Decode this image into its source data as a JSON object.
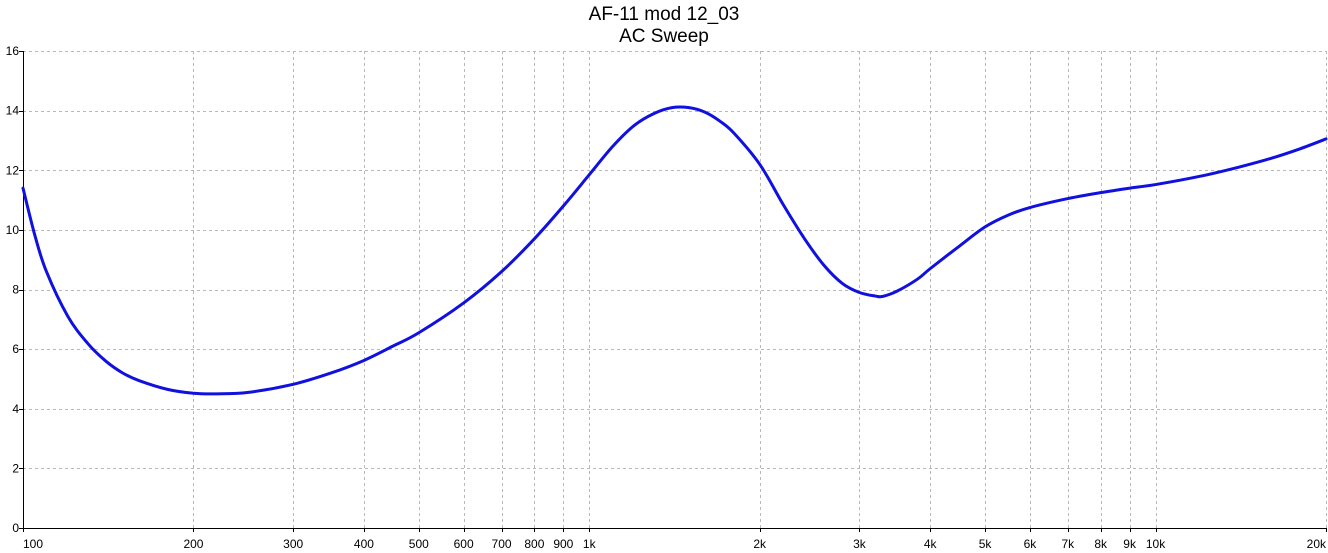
{
  "chart_data": {
    "type": "line",
    "title": "AF-11 mod 12_03",
    "subtitle": "AC Sweep",
    "xlabel": "",
    "ylabel": "",
    "x_scale": "log",
    "xlim": [
      100,
      20000
    ],
    "ylim": [
      0,
      16
    ],
    "grid": true,
    "legend": "none",
    "x_ticks": [
      {
        "value": 100,
        "label": "100"
      },
      {
        "value": 200,
        "label": "200"
      },
      {
        "value": 300,
        "label": "300"
      },
      {
        "value": 400,
        "label": "400"
      },
      {
        "value": 500,
        "label": "500"
      },
      {
        "value": 600,
        "label": "600"
      },
      {
        "value": 700,
        "label": "700"
      },
      {
        "value": 800,
        "label": "800"
      },
      {
        "value": 900,
        "label": "900"
      },
      {
        "value": 1000,
        "label": "1k"
      },
      {
        "value": 2000,
        "label": "2k"
      },
      {
        "value": 3000,
        "label": "3k"
      },
      {
        "value": 4000,
        "label": "4k"
      },
      {
        "value": 5000,
        "label": "5k"
      },
      {
        "value": 6000,
        "label": "6k"
      },
      {
        "value": 7000,
        "label": "7k"
      },
      {
        "value": 8000,
        "label": "8k"
      },
      {
        "value": 9000,
        "label": "9k"
      },
      {
        "value": 10000,
        "label": "10k"
      },
      {
        "value": 20000,
        "label": "20k"
      }
    ],
    "y_ticks": [
      {
        "value": 0,
        "label": "0"
      },
      {
        "value": 2,
        "label": "2"
      },
      {
        "value": 4,
        "label": "4"
      },
      {
        "value": 6,
        "label": "6"
      },
      {
        "value": 8,
        "label": "8"
      },
      {
        "value": 10,
        "label": "10"
      },
      {
        "value": 12,
        "label": "12"
      },
      {
        "value": 14,
        "label": "14"
      },
      {
        "value": 16,
        "label": "16"
      }
    ],
    "series": [
      {
        "color": "#1010e0",
        "x": [
          100,
          105,
          110,
          120,
          130,
          140,
          150,
          160,
          180,
          200,
          220,
          250,
          300,
          350,
          400,
          450,
          500,
          600,
          700,
          800,
          900,
          1000,
          1100,
          1200,
          1300,
          1400,
          1500,
          1600,
          1700,
          1800,
          2000,
          2200,
          2400,
          2600,
          2800,
          3000,
          3200,
          3300,
          3500,
          3800,
          4000,
          4500,
          5000,
          5500,
          6000,
          7000,
          8000,
          9000,
          10000,
          12000,
          14000,
          16000,
          18000,
          20000
        ],
        "y": [
          11.4,
          9.8,
          8.6,
          7.1,
          6.2,
          5.6,
          5.2,
          4.95,
          4.65,
          4.52,
          4.5,
          4.55,
          4.82,
          5.2,
          5.62,
          6.1,
          6.55,
          7.55,
          8.6,
          9.7,
          10.8,
          11.85,
          12.8,
          13.5,
          13.9,
          14.1,
          14.1,
          13.95,
          13.65,
          13.25,
          12.2,
          10.85,
          9.7,
          8.8,
          8.2,
          7.9,
          7.78,
          7.77,
          7.95,
          8.35,
          8.7,
          9.45,
          10.1,
          10.5,
          10.75,
          11.05,
          11.25,
          11.4,
          11.52,
          11.8,
          12.1,
          12.4,
          12.72,
          13.05
        ]
      }
    ]
  }
}
